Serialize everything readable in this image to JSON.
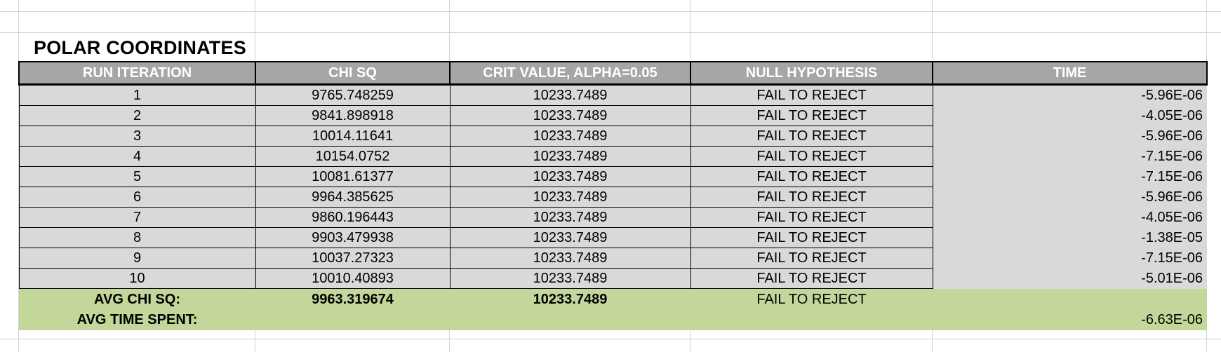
{
  "sheet": {
    "title": "POLAR COORDINATES",
    "headers": [
      "RUN ITERATION",
      "CHI SQ",
      "CRIT VALUE, ALPHA=0.05",
      "NULL HYPOTHESIS",
      "TIME"
    ],
    "rows": [
      {
        "iter": "1",
        "chi": "9765.748259",
        "crit": "10233.7489",
        "null": "FAIL TO REJECT",
        "time": "-5.96E-06"
      },
      {
        "iter": "2",
        "chi": "9841.898918",
        "crit": "10233.7489",
        "null": "FAIL TO REJECT",
        "time": "-4.05E-06"
      },
      {
        "iter": "3",
        "chi": "10014.11641",
        "crit": "10233.7489",
        "null": "FAIL TO REJECT",
        "time": "-5.96E-06"
      },
      {
        "iter": "4",
        "chi": "10154.0752",
        "crit": "10233.7489",
        "null": "FAIL TO REJECT",
        "time": "-7.15E-06"
      },
      {
        "iter": "5",
        "chi": "10081.61377",
        "crit": "10233.7489",
        "null": "FAIL TO REJECT",
        "time": "-7.15E-06"
      },
      {
        "iter": "6",
        "chi": "9964.385625",
        "crit": "10233.7489",
        "null": "FAIL TO REJECT",
        "time": "-5.96E-06"
      },
      {
        "iter": "7",
        "chi": "9860.196443",
        "crit": "10233.7489",
        "null": "FAIL TO REJECT",
        "time": "-4.05E-06"
      },
      {
        "iter": "8",
        "chi": "9903.479938",
        "crit": "10233.7489",
        "null": "FAIL TO REJECT",
        "time": "-1.38E-05"
      },
      {
        "iter": "9",
        "chi": "10037.27323",
        "crit": "10233.7489",
        "null": "FAIL TO REJECT",
        "time": "-7.15E-06"
      },
      {
        "iter": "10",
        "chi": "10010.40893",
        "crit": "10233.7489",
        "null": "FAIL TO REJECT",
        "time": "-5.01E-06"
      }
    ],
    "summary": {
      "avg_chi_label": "AVG CHI SQ:",
      "avg_chi_value": "9963.319674",
      "avg_crit_value": "10233.7489",
      "avg_null": "FAIL TO REJECT",
      "avg_time_label": "AVG TIME SPENT:",
      "avg_time_value": "-6.63E-06"
    }
  },
  "colors": {
    "header_bg": "#a6a6a6",
    "row_bg": "#d9d9d9",
    "summary_bg": "#c4d79b"
  }
}
